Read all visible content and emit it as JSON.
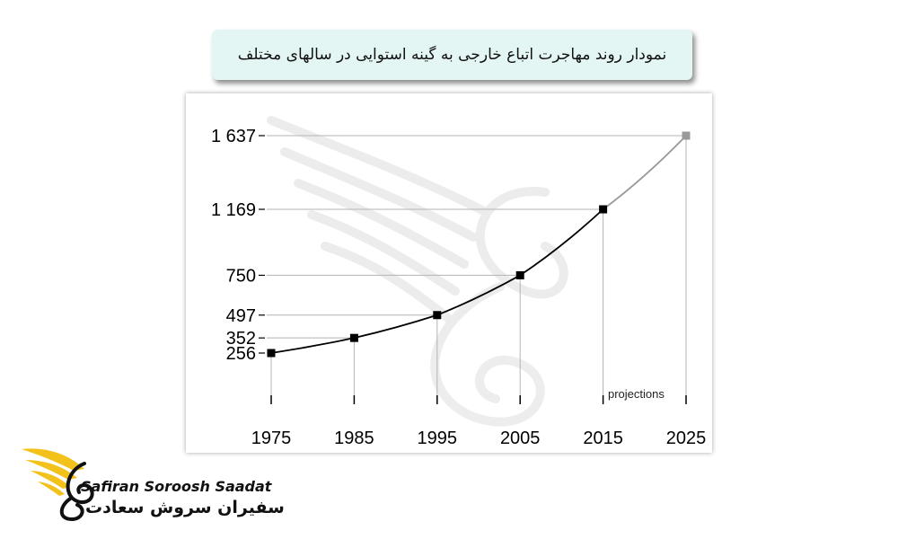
{
  "title": "نمودار روند مهاجرت اتباع خارجی به گینه استوایی در سالهای مختلف",
  "brand": {
    "name_en": "Safiran Soroosh Saadat",
    "name_fa": "سفیران سروش سعادت",
    "logo_icon": "golden-bird-wing-icon",
    "logo_color": "#f2c21a"
  },
  "chart_data": {
    "type": "line",
    "x": [
      1975,
      1985,
      1995,
      2005,
      2015,
      2025
    ],
    "x_tick_labels": [
      "1975",
      "1985",
      "1995",
      "2005",
      "2015",
      "2025"
    ],
    "y": [
      256,
      352,
      497,
      750,
      1169,
      1637
    ],
    "y_tick_labels": [
      "256",
      "352",
      "497",
      "750",
      "1 169",
      "1 637"
    ],
    "projected_points": [
      2025
    ],
    "annotation": "projections",
    "colors": {
      "line": "#000000",
      "marker": "#000000",
      "projection": "#999999",
      "guide": "#b3b3b3"
    }
  }
}
